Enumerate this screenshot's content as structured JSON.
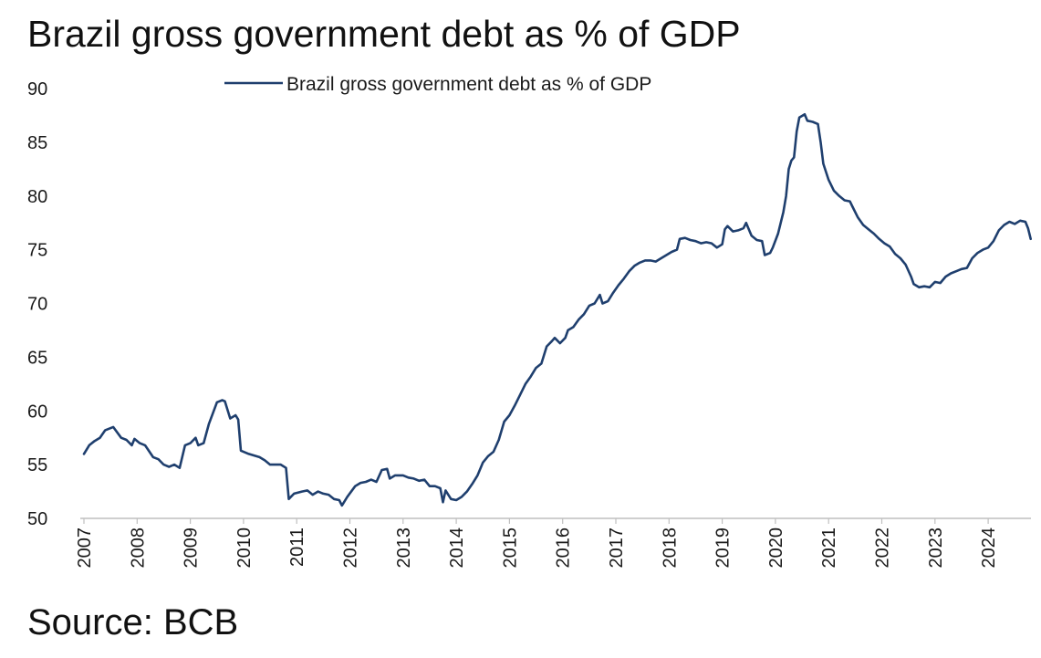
{
  "header": {
    "title": "Brazil gross government debt as % of GDP"
  },
  "footer": {
    "source": "Source: BCB"
  },
  "chart_data": {
    "type": "line",
    "title": "Brazil gross government debt as % of GDP",
    "xlabel": "",
    "ylabel": "",
    "xlim": [
      2007,
      2024.9
    ],
    "ylim": [
      50,
      90
    ],
    "y_ticks": [
      50,
      55,
      60,
      65,
      70,
      75,
      80,
      85,
      90
    ],
    "x_tick_labels": [
      "2007",
      "2008",
      "2009",
      "2010",
      "2011",
      "2012",
      "2013",
      "2014",
      "2015",
      "2016",
      "2017",
      "2018",
      "2019",
      "2020",
      "2021",
      "2022",
      "2023",
      "2024"
    ],
    "grid": false,
    "legend": {
      "position": "top",
      "entries": [
        "Brazil gross government debt as % of GDP"
      ]
    },
    "series": [
      {
        "name": "Brazil gross government debt as % of GDP",
        "color": "#1f3f6e",
        "points": [
          [
            2007.0,
            56.0
          ],
          [
            2007.1,
            56.8
          ],
          [
            2007.2,
            57.2
          ],
          [
            2007.3,
            57.5
          ],
          [
            2007.4,
            58.2
          ],
          [
            2007.55,
            58.5
          ],
          [
            2007.7,
            57.5
          ],
          [
            2007.8,
            57.3
          ],
          [
            2007.9,
            56.8
          ],
          [
            2007.95,
            57.4
          ],
          [
            2008.05,
            57.0
          ],
          [
            2008.15,
            56.8
          ],
          [
            2008.3,
            55.7
          ],
          [
            2008.4,
            55.5
          ],
          [
            2008.5,
            55.0
          ],
          [
            2008.6,
            54.8
          ],
          [
            2008.7,
            55.0
          ],
          [
            2008.8,
            54.7
          ],
          [
            2008.9,
            56.8
          ],
          [
            2009.0,
            57.0
          ],
          [
            2009.1,
            57.5
          ],
          [
            2009.15,
            56.8
          ],
          [
            2009.25,
            57.0
          ],
          [
            2009.35,
            58.8
          ],
          [
            2009.5,
            60.8
          ],
          [
            2009.6,
            61.0
          ],
          [
            2009.65,
            60.9
          ],
          [
            2009.75,
            59.3
          ],
          [
            2009.85,
            59.6
          ],
          [
            2009.9,
            59.2
          ],
          [
            2009.95,
            56.3
          ],
          [
            2010.1,
            56.0
          ],
          [
            2010.3,
            55.7
          ],
          [
            2010.4,
            55.4
          ],
          [
            2010.5,
            55.0
          ],
          [
            2010.7,
            55.0
          ],
          [
            2010.8,
            54.7
          ],
          [
            2010.85,
            51.8
          ],
          [
            2010.95,
            52.3
          ],
          [
            2011.1,
            52.5
          ],
          [
            2011.2,
            52.6
          ],
          [
            2011.3,
            52.2
          ],
          [
            2011.4,
            52.5
          ],
          [
            2011.5,
            52.3
          ],
          [
            2011.6,
            52.2
          ],
          [
            2011.7,
            51.8
          ],
          [
            2011.8,
            51.7
          ],
          [
            2011.85,
            51.2
          ],
          [
            2011.95,
            52.0
          ],
          [
            2012.1,
            53.0
          ],
          [
            2012.2,
            53.3
          ],
          [
            2012.3,
            53.4
          ],
          [
            2012.4,
            53.6
          ],
          [
            2012.5,
            53.4
          ],
          [
            2012.6,
            54.5
          ],
          [
            2012.7,
            54.6
          ],
          [
            2012.75,
            53.7
          ],
          [
            2012.85,
            54.0
          ],
          [
            2013.0,
            54.0
          ],
          [
            2013.1,
            53.8
          ],
          [
            2013.2,
            53.7
          ],
          [
            2013.3,
            53.5
          ],
          [
            2013.4,
            53.6
          ],
          [
            2013.5,
            53.0
          ],
          [
            2013.6,
            53.0
          ],
          [
            2013.7,
            52.8
          ],
          [
            2013.75,
            51.5
          ],
          [
            2013.8,
            52.6
          ],
          [
            2013.9,
            51.8
          ],
          [
            2014.0,
            51.7
          ],
          [
            2014.1,
            52.0
          ],
          [
            2014.2,
            52.5
          ],
          [
            2014.3,
            53.2
          ],
          [
            2014.4,
            54.0
          ],
          [
            2014.5,
            55.2
          ],
          [
            2014.6,
            55.8
          ],
          [
            2014.7,
            56.2
          ],
          [
            2014.8,
            57.3
          ],
          [
            2014.9,
            59.0
          ],
          [
            2015.0,
            59.6
          ],
          [
            2015.1,
            60.5
          ],
          [
            2015.2,
            61.5
          ],
          [
            2015.3,
            62.5
          ],
          [
            2015.4,
            63.2
          ],
          [
            2015.5,
            64.0
          ],
          [
            2015.6,
            64.4
          ],
          [
            2015.7,
            66.0
          ],
          [
            2015.8,
            66.5
          ],
          [
            2015.85,
            66.8
          ],
          [
            2015.95,
            66.3
          ],
          [
            2016.05,
            66.8
          ],
          [
            2016.1,
            67.5
          ],
          [
            2016.2,
            67.8
          ],
          [
            2016.3,
            68.5
          ],
          [
            2016.4,
            69.0
          ],
          [
            2016.5,
            69.8
          ],
          [
            2016.6,
            70.0
          ],
          [
            2016.7,
            70.8
          ],
          [
            2016.75,
            70.0
          ],
          [
            2016.85,
            70.2
          ],
          [
            2016.95,
            71.0
          ],
          [
            2017.05,
            71.7
          ],
          [
            2017.15,
            72.3
          ],
          [
            2017.25,
            73.0
          ],
          [
            2017.35,
            73.5
          ],
          [
            2017.45,
            73.8
          ],
          [
            2017.55,
            74.0
          ],
          [
            2017.65,
            74.0
          ],
          [
            2017.75,
            73.9
          ],
          [
            2017.85,
            74.2
          ],
          [
            2017.95,
            74.5
          ],
          [
            2018.05,
            74.8
          ],
          [
            2018.15,
            75.0
          ],
          [
            2018.2,
            76.0
          ],
          [
            2018.3,
            76.1
          ],
          [
            2018.4,
            75.9
          ],
          [
            2018.5,
            75.8
          ],
          [
            2018.6,
            75.6
          ],
          [
            2018.7,
            75.7
          ],
          [
            2018.8,
            75.6
          ],
          [
            2018.9,
            75.2
          ],
          [
            2019.0,
            75.5
          ],
          [
            2019.05,
            76.9
          ],
          [
            2019.1,
            77.2
          ],
          [
            2019.2,
            76.7
          ],
          [
            2019.3,
            76.8
          ],
          [
            2019.4,
            77.0
          ],
          [
            2019.45,
            77.5
          ],
          [
            2019.55,
            76.3
          ],
          [
            2019.65,
            75.9
          ],
          [
            2019.75,
            75.8
          ],
          [
            2019.8,
            74.5
          ],
          [
            2019.9,
            74.7
          ],
          [
            2019.95,
            75.2
          ],
          [
            2020.05,
            76.5
          ],
          [
            2020.15,
            78.5
          ],
          [
            2020.2,
            80.0
          ],
          [
            2020.25,
            82.5
          ],
          [
            2020.3,
            83.3
          ],
          [
            2020.35,
            83.6
          ],
          [
            2020.4,
            86.0
          ],
          [
            2020.45,
            87.3
          ],
          [
            2020.55,
            87.6
          ],
          [
            2020.6,
            87.0
          ],
          [
            2020.7,
            86.9
          ],
          [
            2020.8,
            86.7
          ],
          [
            2020.85,
            85.0
          ],
          [
            2020.9,
            83.0
          ],
          [
            2021.0,
            81.5
          ],
          [
            2021.1,
            80.5
          ],
          [
            2021.2,
            80.0
          ],
          [
            2021.3,
            79.6
          ],
          [
            2021.4,
            79.5
          ],
          [
            2021.45,
            79.0
          ],
          [
            2021.55,
            78.0
          ],
          [
            2021.65,
            77.3
          ],
          [
            2021.75,
            76.9
          ],
          [
            2021.85,
            76.5
          ],
          [
            2021.95,
            76.0
          ],
          [
            2022.05,
            75.6
          ],
          [
            2022.15,
            75.3
          ],
          [
            2022.25,
            74.6
          ],
          [
            2022.35,
            74.2
          ],
          [
            2022.45,
            73.6
          ],
          [
            2022.55,
            72.5
          ],
          [
            2022.6,
            71.8
          ],
          [
            2022.7,
            71.5
          ],
          [
            2022.8,
            71.6
          ],
          [
            2022.9,
            71.5
          ],
          [
            2023.0,
            72.0
          ],
          [
            2023.1,
            71.9
          ],
          [
            2023.2,
            72.5
          ],
          [
            2023.3,
            72.8
          ],
          [
            2023.4,
            73.0
          ],
          [
            2023.5,
            73.2
          ],
          [
            2023.6,
            73.3
          ],
          [
            2023.7,
            74.2
          ],
          [
            2023.8,
            74.7
          ],
          [
            2023.9,
            75.0
          ],
          [
            2024.0,
            75.2
          ],
          [
            2024.1,
            75.8
          ],
          [
            2024.2,
            76.8
          ],
          [
            2024.3,
            77.3
          ],
          [
            2024.4,
            77.6
          ],
          [
            2024.5,
            77.4
          ],
          [
            2024.6,
            77.7
          ],
          [
            2024.7,
            77.6
          ],
          [
            2024.75,
            77.0
          ],
          [
            2024.8,
            76.0
          ]
        ]
      }
    ]
  }
}
